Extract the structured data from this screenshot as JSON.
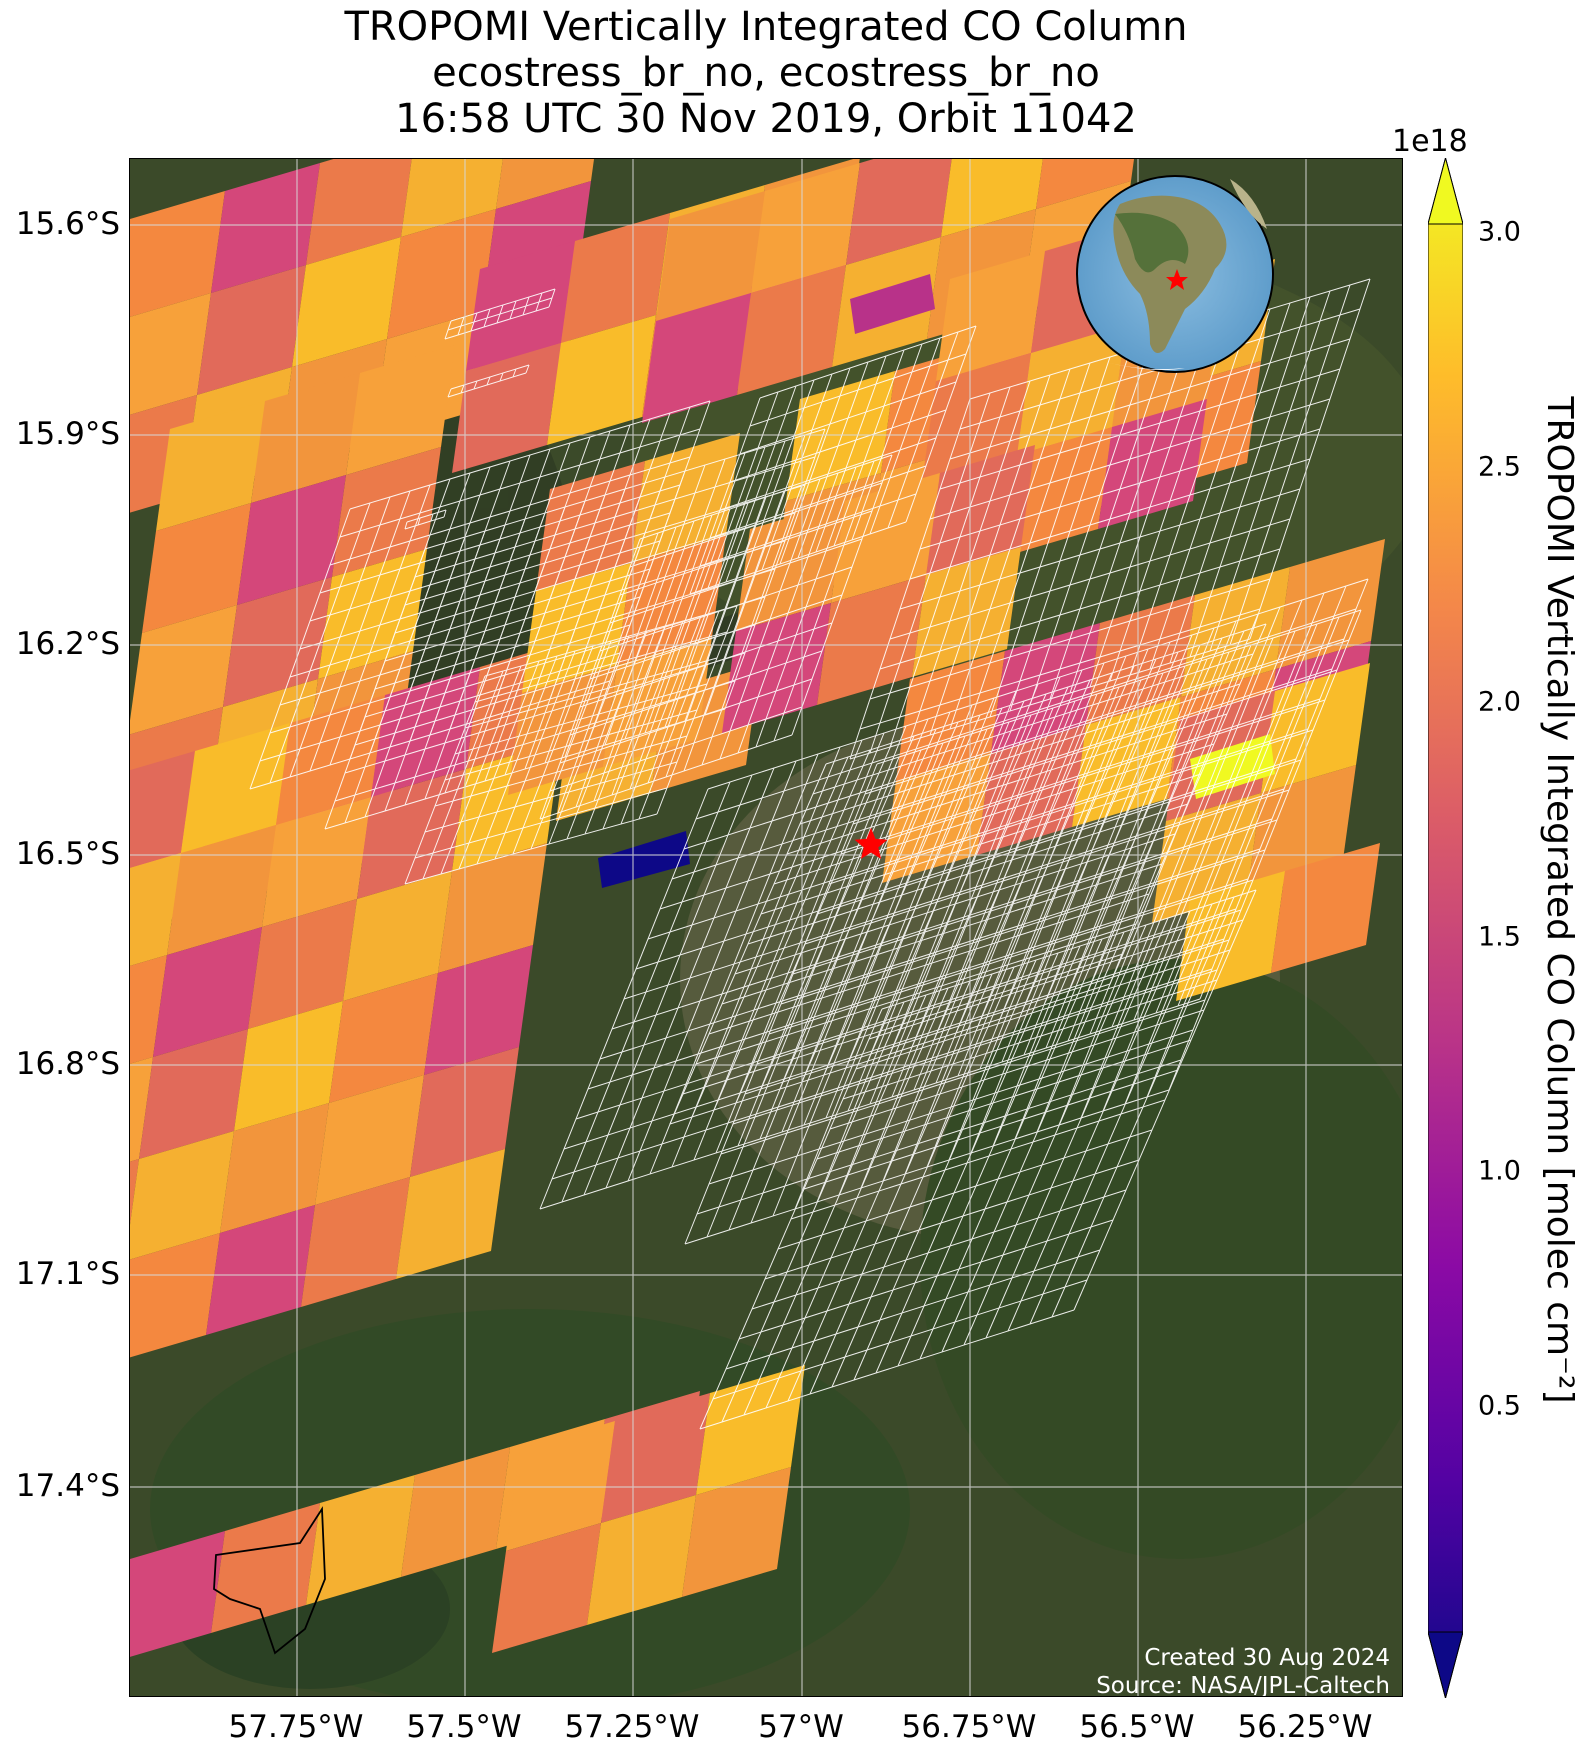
{
  "title": {
    "line1": "TROPOMI Vertically Integrated CO Column",
    "line2": "ecostress_br_no, ecostress_br_no",
    "line3": "16:58 UTC 30 Nov 2019, Orbit 11042"
  },
  "map": {
    "lat_ticks": [
      "15.6°S",
      "15.9°S",
      "16.2°S",
      "16.5°S",
      "16.8°S",
      "17.1°S",
      "17.4°S"
    ],
    "lon_ticks": [
      "57.75°W",
      "57.5°W",
      "57.25°W",
      "57°W",
      "56.75°W",
      "56.5°W",
      "56.25°W"
    ],
    "site_marker": "red-star",
    "marker_color": "#ff0000",
    "footprint_color": "#ffffff",
    "grid": true,
    "inset": "globe-south-america",
    "credit_line1": "Created 30 Aug 2024",
    "credit_line2": "Source: NASA/JPL-Caltech"
  },
  "colorbar": {
    "exponent": "1e18",
    "ticks": [
      "3.0",
      "2.5",
      "2.0",
      "1.5",
      "1.0",
      "0.5"
    ],
    "label": "TROPOMI Vertically Integrated CO Column [molec cm⁻²]",
    "colormap": "plasma",
    "colors": [
      "#0d0887",
      "#5302a3",
      "#8b0aa5",
      "#b83289",
      "#db5c68",
      "#f48849",
      "#febd2a",
      "#f0f921"
    ]
  }
}
